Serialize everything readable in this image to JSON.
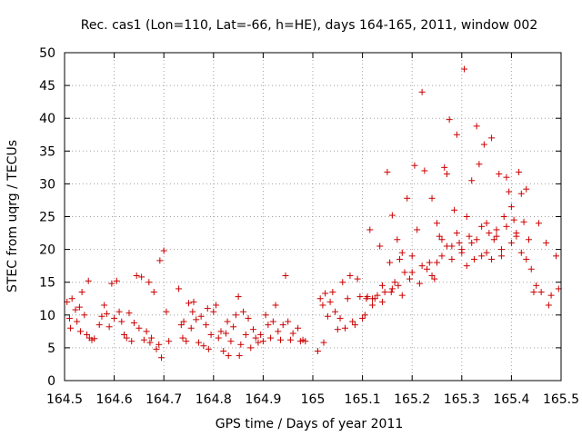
{
  "chart_data": {
    "type": "scatter",
    "title": "Rec. cas1 (Lon=110, Lat=-66, h=HE), days 164-165, 2011, window 002",
    "xlabel": "GPS time / Days of year 2011",
    "ylabel": "STEC from uqrg / TECUs",
    "xlim": [
      164.5,
      165.5
    ],
    "ylim": [
      0,
      50
    ],
    "xticks": [
      164.5,
      164.6,
      164.7,
      164.8,
      164.9,
      165,
      165.1,
      165.2,
      165.3,
      165.4,
      165.5
    ],
    "xtick_labels": [
      "164.5",
      "164.6",
      "164.7",
      "164.8",
      "164.9",
      "165",
      "165.1",
      "165.2",
      "165.3",
      "165.4",
      "165.5"
    ],
    "yticks": [
      0,
      5,
      10,
      15,
      20,
      25,
      30,
      35,
      40,
      45,
      50
    ],
    "ytick_labels": [
      "0",
      "5",
      "10",
      "15",
      "20",
      "25",
      "30",
      "35",
      "40",
      "45",
      "50"
    ],
    "grid": true,
    "marker": "plus",
    "color": "#cc0000",
    "series": [
      {
        "name": "STEC",
        "points": [
          [
            164.505,
            12.0
          ],
          [
            164.51,
            9.5
          ],
          [
            164.512,
            8.0
          ],
          [
            164.515,
            12.5
          ],
          [
            164.522,
            10.8
          ],
          [
            164.525,
            9.0
          ],
          [
            164.53,
            11.2
          ],
          [
            164.532,
            7.5
          ],
          [
            164.535,
            13.5
          ],
          [
            164.54,
            10.0
          ],
          [
            164.545,
            7.0
          ],
          [
            164.548,
            15.2
          ],
          [
            164.55,
            6.5
          ],
          [
            164.555,
            6.2
          ],
          [
            164.56,
            6.4
          ],
          [
            164.57,
            8.5
          ],
          [
            164.575,
            9.8
          ],
          [
            164.58,
            11.5
          ],
          [
            164.585,
            10.2
          ],
          [
            164.59,
            8.2
          ],
          [
            164.595,
            14.8
          ],
          [
            164.6,
            9.5
          ],
          [
            164.605,
            15.2
          ],
          [
            164.61,
            10.5
          ],
          [
            164.615,
            9.0
          ],
          [
            164.62,
            7.0
          ],
          [
            164.625,
            6.5
          ],
          [
            164.63,
            10.3
          ],
          [
            164.635,
            6.0
          ],
          [
            164.64,
            8.8
          ],
          [
            164.645,
            16.0
          ],
          [
            164.65,
            8.0
          ],
          [
            164.655,
            15.8
          ],
          [
            164.66,
            6.2
          ],
          [
            164.665,
            7.5
          ],
          [
            164.67,
            15.0
          ],
          [
            164.672,
            5.8
          ],
          [
            164.675,
            6.5
          ],
          [
            164.68,
            13.5
          ],
          [
            164.685,
            4.8
          ],
          [
            164.69,
            5.5
          ],
          [
            164.692,
            18.3
          ],
          [
            164.695,
            3.5
          ],
          [
            164.7,
            19.8
          ],
          [
            164.705,
            10.5
          ],
          [
            164.71,
            6.0
          ],
          [
            164.73,
            14.0
          ],
          [
            164.735,
            8.5
          ],
          [
            164.738,
            6.5
          ],
          [
            164.74,
            9.0
          ],
          [
            164.745,
            6.0
          ],
          [
            164.75,
            11.8
          ],
          [
            164.755,
            8.0
          ],
          [
            164.758,
            10.5
          ],
          [
            164.76,
            12.0
          ],
          [
            164.765,
            9.3
          ],
          [
            164.77,
            5.8
          ],
          [
            164.775,
            9.8
          ],
          [
            164.78,
            5.3
          ],
          [
            164.785,
            8.5
          ],
          [
            164.788,
            11.0
          ],
          [
            164.79,
            4.8
          ],
          [
            164.795,
            7.0
          ],
          [
            164.8,
            10.5
          ],
          [
            164.805,
            11.5
          ],
          [
            164.81,
            6.5
          ],
          [
            164.815,
            7.5
          ],
          [
            164.82,
            4.5
          ],
          [
            164.825,
            7.2
          ],
          [
            164.828,
            9.0
          ],
          [
            164.83,
            3.8
          ],
          [
            164.835,
            6.0
          ],
          [
            164.84,
            8.2
          ],
          [
            164.845,
            10.0
          ],
          [
            164.85,
            12.8
          ],
          [
            164.852,
            3.8
          ],
          [
            164.855,
            5.5
          ],
          [
            164.86,
            10.5
          ],
          [
            164.865,
            7.0
          ],
          [
            164.87,
            9.5
          ],
          [
            164.875,
            5.0
          ],
          [
            164.88,
            7.8
          ],
          [
            164.885,
            6.5
          ],
          [
            164.89,
            5.8
          ],
          [
            164.895,
            7.0
          ],
          [
            164.9,
            6.0
          ],
          [
            164.905,
            10.0
          ],
          [
            164.91,
            8.5
          ],
          [
            164.915,
            6.5
          ],
          [
            164.92,
            9.0
          ],
          [
            164.925,
            11.5
          ],
          [
            164.93,
            7.5
          ],
          [
            164.935,
            6.2
          ],
          [
            164.94,
            8.5
          ],
          [
            164.945,
            16.0
          ],
          [
            164.95,
            9.0
          ],
          [
            164.955,
            6.2
          ],
          [
            164.96,
            7.2
          ],
          [
            164.97,
            8.0
          ],
          [
            164.975,
            6.0
          ],
          [
            164.98,
            6.2
          ],
          [
            164.985,
            6.0
          ],
          [
            165.01,
            4.5
          ],
          [
            165.015,
            12.5
          ],
          [
            165.02,
            11.5
          ],
          [
            165.022,
            5.8
          ],
          [
            165.025,
            13.3
          ],
          [
            165.03,
            9.8
          ],
          [
            165.035,
            12.0
          ],
          [
            165.04,
            13.5
          ],
          [
            165.045,
            10.5
          ],
          [
            165.05,
            7.8
          ],
          [
            165.055,
            9.5
          ],
          [
            165.06,
            15.0
          ],
          [
            165.065,
            8.0
          ],
          [
            165.07,
            12.5
          ],
          [
            165.075,
            16.0
          ],
          [
            165.08,
            9.0
          ],
          [
            165.085,
            8.5
          ],
          [
            165.09,
            15.5
          ],
          [
            165.095,
            12.8
          ],
          [
            165.1,
            9.5
          ],
          [
            165.105,
            10.0
          ],
          [
            165.108,
            12.5
          ],
          [
            165.11,
            12.8
          ],
          [
            165.115,
            23.0
          ],
          [
            165.12,
            11.5
          ],
          [
            165.125,
            12.5
          ],
          [
            165.13,
            13.0
          ],
          [
            165.135,
            20.5
          ],
          [
            165.14,
            12.0
          ],
          [
            165.145,
            13.5
          ],
          [
            165.15,
            31.8
          ],
          [
            165.155,
            18.0
          ],
          [
            165.158,
            13.5
          ],
          [
            165.16,
            25.2
          ],
          [
            165.165,
            15.0
          ],
          [
            165.17,
            21.5
          ],
          [
            165.172,
            14.5
          ],
          [
            165.175,
            18.5
          ],
          [
            165.18,
            19.5
          ],
          [
            165.185,
            16.5
          ],
          [
            165.19,
            27.8
          ],
          [
            165.195,
            15.5
          ],
          [
            165.2,
            19.0
          ],
          [
            165.205,
            32.8
          ],
          [
            165.21,
            23.0
          ],
          [
            165.215,
            14.8
          ],
          [
            165.22,
            44.0
          ],
          [
            165.225,
            32.0
          ],
          [
            165.23,
            17.0
          ],
          [
            165.235,
            18.0
          ],
          [
            165.24,
            27.8
          ],
          [
            165.245,
            15.5
          ],
          [
            165.25,
            24.0
          ],
          [
            165.255,
            22.0
          ],
          [
            165.26,
            21.5
          ],
          [
            165.265,
            32.5
          ],
          [
            165.27,
            31.5
          ],
          [
            165.275,
            39.8
          ],
          [
            165.28,
            20.5
          ],
          [
            165.285,
            26.0
          ],
          [
            165.29,
            37.5
          ],
          [
            165.295,
            21.0
          ],
          [
            165.3,
            20.0
          ],
          [
            165.305,
            47.5
          ],
          [
            165.31,
            25.0
          ],
          [
            165.315,
            22.0
          ],
          [
            165.32,
            30.5
          ],
          [
            165.325,
            18.5
          ],
          [
            165.33,
            38.8
          ],
          [
            165.335,
            33.0
          ],
          [
            165.34,
            23.5
          ],
          [
            165.345,
            36.0
          ],
          [
            165.35,
            19.5
          ],
          [
            165.355,
            22.5
          ],
          [
            165.36,
            37.0
          ],
          [
            165.365,
            21.5
          ],
          [
            165.37,
            23.0
          ],
          [
            165.375,
            31.5
          ],
          [
            165.38,
            19.0
          ],
          [
            165.385,
            25.0
          ],
          [
            165.39,
            31.0
          ],
          [
            165.395,
            28.8
          ],
          [
            165.4,
            26.5
          ],
          [
            165.405,
            24.5
          ],
          [
            165.41,
            22.0
          ],
          [
            165.415,
            31.8
          ],
          [
            165.42,
            28.5
          ],
          [
            165.425,
            24.2
          ],
          [
            165.43,
            29.2
          ],
          [
            165.435,
            21.5
          ],
          [
            165.44,
            17.0
          ],
          [
            165.445,
            13.5
          ],
          [
            165.45,
            14.5
          ],
          [
            165.455,
            24.0
          ],
          [
            165.46,
            13.5
          ],
          [
            165.47,
            21.0
          ],
          [
            165.475,
            11.5
          ],
          [
            165.48,
            13.0
          ],
          [
            165.49,
            19.0
          ],
          [
            165.495,
            14.0
          ],
          [
            165.2,
            16.5
          ],
          [
            165.22,
            17.5
          ],
          [
            165.24,
            16.0
          ],
          [
            165.26,
            19.0
          ],
          [
            165.28,
            18.5
          ],
          [
            165.3,
            19.5
          ],
          [
            165.32,
            21.0
          ],
          [
            165.34,
            19.0
          ],
          [
            165.36,
            18.5
          ],
          [
            165.38,
            20.0
          ],
          [
            165.4,
            21.0
          ],
          [
            165.42,
            19.5
          ],
          [
            165.25,
            18.0
          ],
          [
            165.27,
            20.5
          ],
          [
            165.29,
            22.5
          ],
          [
            165.31,
            17.5
          ],
          [
            165.33,
            21.5
          ],
          [
            165.35,
            24.0
          ],
          [
            165.37,
            22.0
          ],
          [
            165.39,
            23.5
          ],
          [
            165.41,
            22.5
          ],
          [
            165.43,
            18.5
          ],
          [
            165.18,
            13.0
          ],
          [
            165.16,
            14.0
          ],
          [
            165.14,
            14.5
          ],
          [
            165.12,
            12.5
          ]
        ]
      }
    ]
  }
}
